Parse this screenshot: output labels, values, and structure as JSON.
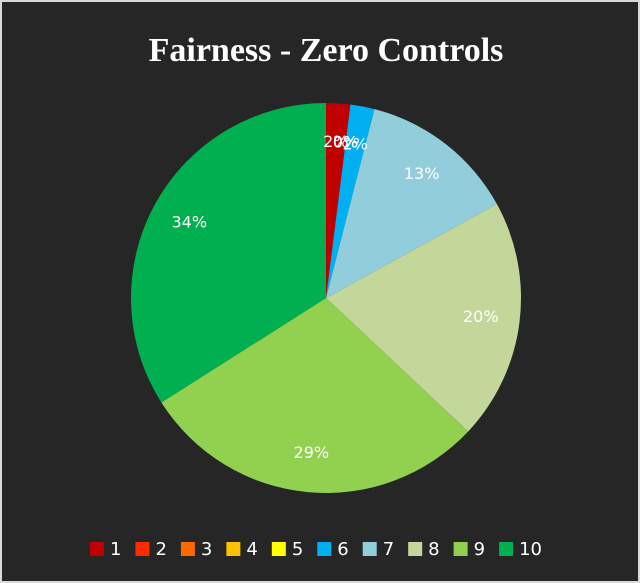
{
  "chart_data": {
    "type": "pie",
    "title": "Fairness - Zero Controls",
    "categories": [
      "1",
      "2",
      "3",
      "4",
      "5",
      "6",
      "7",
      "8",
      "9",
      "10"
    ],
    "values": [
      2,
      0,
      0,
      0,
      0,
      2,
      13,
      20,
      29,
      34
    ],
    "value_labels": [
      "2%",
      "0%",
      "0%",
      "0%",
      "0%",
      "2%",
      "13%",
      "20%",
      "29%",
      "34%"
    ],
    "colors": [
      "#c00000",
      "#ff2a00",
      "#ff6a00",
      "#ffc000",
      "#ffff00",
      "#00b0f0",
      "#92cddc",
      "#c4d79b",
      "#92d050",
      "#00b050"
    ],
    "legend": "bottom"
  }
}
